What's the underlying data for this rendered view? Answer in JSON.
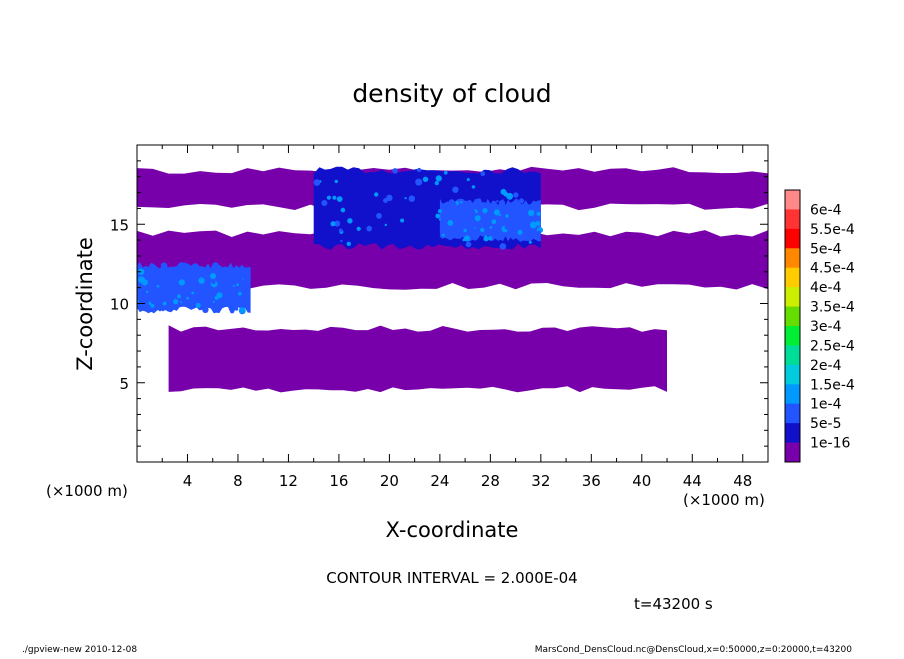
{
  "chart_data": {
    "type": "heatmap",
    "title": "density of cloud",
    "xlabel": "X-coordinate",
    "ylabel": "Z-coordinate",
    "x_unit_label_left": "(×1000 m)",
    "x_unit_label_right": "(×1000 m)",
    "x_ticks": [
      "4",
      "8",
      "12",
      "16",
      "20",
      "24",
      "28",
      "32",
      "36",
      "40",
      "44",
      "48"
    ],
    "y_ticks": [
      "5",
      "10",
      "15"
    ],
    "xlim": [
      0,
      50
    ],
    "ylim": [
      0,
      20
    ],
    "colorbar_labels": [
      "6e-4",
      "5.5e-4",
      "5e-4",
      "4.5e-4",
      "4e-4",
      "3.5e-4",
      "3e-4",
      "2.5e-4",
      "2e-4",
      "1.5e-4",
      "1e-4",
      "5e-5",
      "1e-16"
    ],
    "colorbar_colors": [
      "#ff8888",
      "#ff3333",
      "#ff0000",
      "#ff8800",
      "#ffcc00",
      "#ccee00",
      "#66dd00",
      "#00ee33",
      "#00dd99",
      "#00ccdd",
      "#0099ff",
      "#2255ff",
      "#1111cc",
      "#7700aa"
    ],
    "cloud_regions": [
      {
        "level": "1e-16",
        "z_range": [
          4.5,
          8.5
        ],
        "x_range": [
          2.5,
          42
        ]
      },
      {
        "level": "1e-16",
        "z_range": [
          11,
          14.5
        ],
        "x_range": [
          0,
          50
        ]
      },
      {
        "level": "1e-16",
        "z_range": [
          16,
          18.5
        ],
        "x_range": [
          0,
          50
        ]
      },
      {
        "level": "5e-5",
        "z_range": [
          13.5,
          18.5
        ],
        "x_range": [
          14,
          32
        ]
      },
      {
        "level": "1e-4",
        "z_range": [
          9.5,
          12.5
        ],
        "x_range": [
          0,
          9
        ]
      },
      {
        "level": "1e-4",
        "z_range": [
          14,
          16.5
        ],
        "x_range": [
          24,
          32
        ]
      }
    ],
    "grid": false,
    "legend": "right colorbar"
  },
  "info": {
    "contour_interval": "CONTOUR INTERVAL = 2.000E-04",
    "time": "t=43200 s",
    "footer_left": "./gpview-new  2010-12-08",
    "footer_right": "MarsCond_DensCloud.nc@DensCloud,x=0:50000,z=0:20000,t=43200"
  }
}
